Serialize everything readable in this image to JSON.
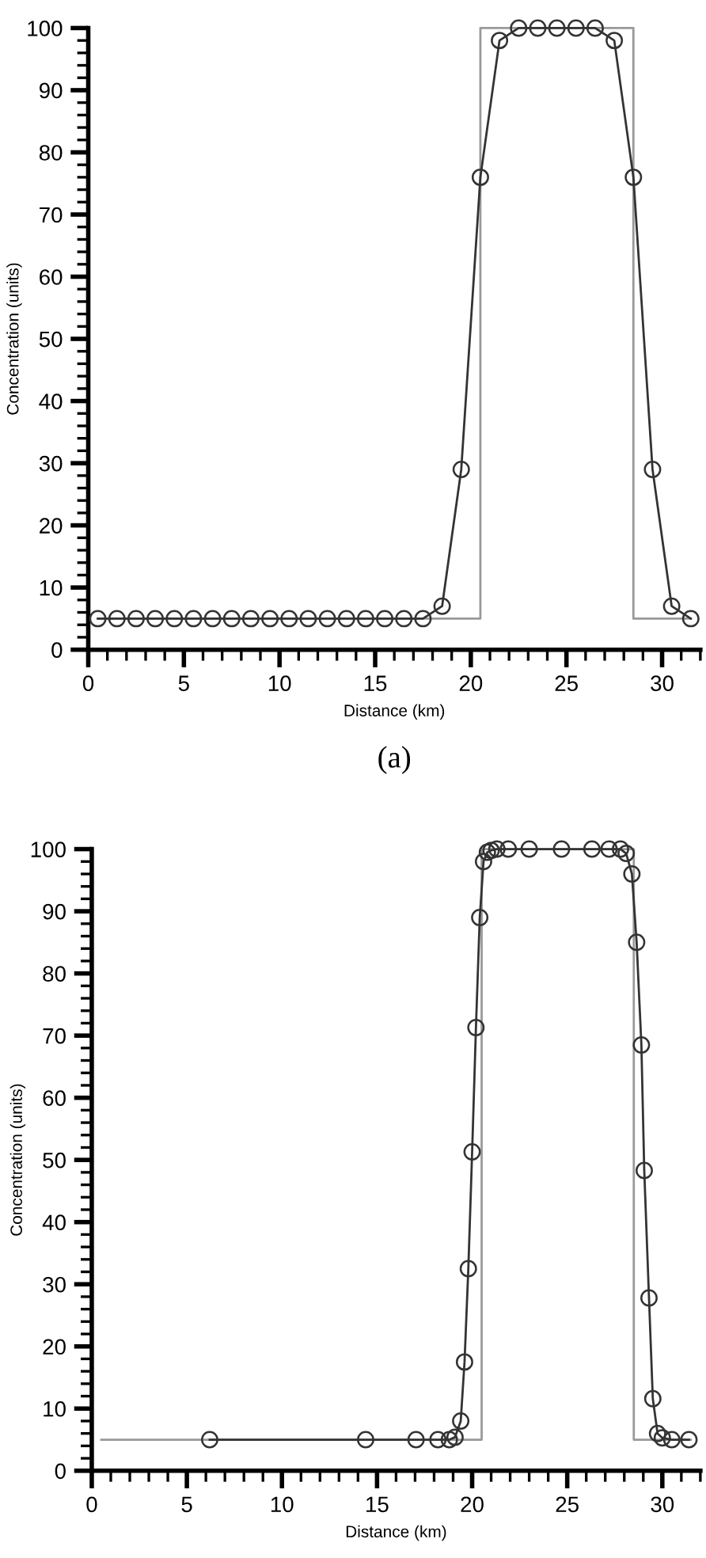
{
  "chart_data": [
    {
      "type": "line",
      "xlabel": "Distance (km)",
      "ylabel": "Concentration (units)",
      "xlim": [
        0,
        32
      ],
      "ylim": [
        0,
        100
      ],
      "xticks": [
        0,
        5,
        10,
        15,
        20,
        25,
        30
      ],
      "yticks": [
        0,
        10,
        20,
        30,
        40,
        50,
        60,
        70,
        80,
        90,
        100
      ],
      "grid": false,
      "legend": false,
      "annotations": [
        "(a)"
      ],
      "series": [
        {
          "color": "#999999",
          "marker": "none",
          "x": [
            0.5,
            20.5,
            20.5,
            28.5,
            28.5,
            31.5
          ],
          "values": [
            5,
            5,
            100,
            100,
            5,
            5
          ]
        },
        {
          "color": "#333333",
          "marker": "circle",
          "x": [
            0.5,
            1.5,
            2.5,
            3.5,
            4.5,
            5.5,
            6.5,
            7.5,
            8.5,
            9.5,
            10.5,
            11.5,
            12.5,
            13.5,
            14.5,
            15.5,
            16.5,
            17.5,
            18.5,
            19.5,
            20.5,
            21.5,
            22.5,
            23.5,
            24.5,
            25.5,
            26.5,
            27.5,
            28.5,
            29.5,
            30.5,
            31.5
          ],
          "values": [
            5,
            5,
            5,
            5,
            5,
            5,
            5,
            5,
            5,
            5,
            5,
            5,
            5,
            5,
            5,
            5,
            5,
            5,
            7,
            29,
            76,
            98,
            100,
            100,
            100,
            100,
            100,
            98,
            76,
            29,
            7,
            5
          ]
        }
      ]
    },
    {
      "type": "line",
      "xlabel": "Distance (km)",
      "ylabel": "Concentration (units)",
      "xlim": [
        0,
        32
      ],
      "ylim": [
        0,
        100
      ],
      "xticks": [
        0,
        5,
        10,
        15,
        20,
        25,
        30
      ],
      "yticks": [
        0,
        10,
        20,
        30,
        40,
        50,
        60,
        70,
        80,
        90,
        100
      ],
      "grid": false,
      "legend": false,
      "series": [
        {
          "color": "#999999",
          "marker": "none",
          "x": [
            0.5,
            20.5,
            20.5,
            28.5,
            28.5,
            31.5
          ],
          "values": [
            5,
            5,
            100,
            100,
            5,
            5
          ]
        },
        {
          "color": "#333333",
          "marker": "circle",
          "x": [
            6.2,
            14.4,
            17.05,
            18.2,
            18.8,
            19.1,
            19.4,
            19.6,
            19.8,
            20.0,
            20.2,
            20.4,
            20.6,
            20.8,
            21.0,
            21.3,
            21.9,
            23.0,
            24.7,
            26.3,
            27.2,
            27.8,
            28.1,
            28.4,
            28.65,
            28.9,
            29.05,
            29.3,
            29.5,
            29.75,
            30.0,
            30.5,
            31.4
          ],
          "values": [
            5,
            5,
            5,
            5,
            5,
            5.4,
            8,
            17.5,
            32.5,
            51.3,
            71.3,
            89,
            98,
            99.5,
            99.8,
            100,
            100,
            100,
            100,
            100,
            100,
            100,
            99.3,
            96,
            85,
            68.5,
            48.3,
            27.8,
            11.6,
            6,
            5.3,
            5,
            5
          ]
        }
      ]
    }
  ]
}
